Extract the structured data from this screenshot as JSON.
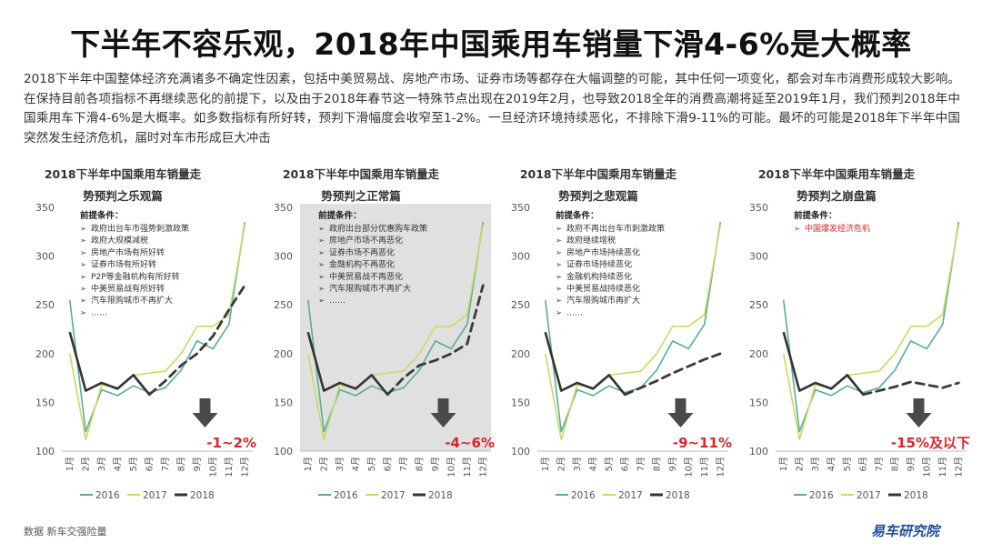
{
  "title": "下半年不容乐观，2018年中国乘用车销量下滑4-6%是大概率",
  "intro": "2018下半年中国整体经济充满诸多不确定性因素，包括中美贸易战、房地产市场、证券市场等都存在大幅调整的可能，其中任何一项变化，都会对车市消费形成较大影响。在保持目前各项指标不再继续恶化的前提下，以及由于2018年春节这一特殊节点出现在2019年2月，也导致2018全年的消费高潮将延至2019年1月，我们预判2018年中国乘用车下滑4-6%是大概率。如多数指标有所好转，预判下滑幅度会收窄至1-2%。一旦经济环境持续恶化，不排除下滑9-11%的可能。最坏的可能是2018年下半年中国突然发生经济危机，届时对车市形成巨大冲击",
  "colors": {
    "s2016": "#5aaa9c",
    "s2017": "#c5dd5f",
    "s2018": "#333333",
    "accent": "#d6262c",
    "arrow": "#4a4a4a",
    "shade": "#e0e0e0"
  },
  "chart_data": [
    {
      "type": "line",
      "title_line1": "2018下半年中国乘用车销量走",
      "title_line2": "势预判之乐观篇",
      "categories": [
        "1月",
        "2月",
        "3月",
        "4月",
        "5月",
        "6月",
        "7月",
        "8月",
        "9月",
        "10月",
        "11月",
        "12月"
      ],
      "ylim": [
        100,
        350
      ],
      "yticks": [
        100,
        150,
        200,
        250,
        300,
        350
      ],
      "series": [
        {
          "name": "2016",
          "values": [
            255,
            120,
            163,
            157,
            167,
            160,
            165,
            183,
            213,
            205,
            230,
            335
          ]
        },
        {
          "name": "2017",
          "values": [
            200,
            112,
            168,
            165,
            178,
            180,
            182,
            200,
            228,
            228,
            240,
            332
          ]
        },
        {
          "name": "2018",
          "values": [
            222,
            162,
            170,
            164,
            178,
            158,
            null,
            null,
            null,
            null,
            null,
            null
          ]
        }
      ],
      "forecast": {
        "values": [
          null,
          null,
          null,
          null,
          null,
          158,
          172,
          188,
          200,
          218,
          245,
          270
        ]
      },
      "premise_label": "前提条件：",
      "premise_items": [
        "政府出台车市强势刺激政策",
        "政府大规模减税",
        "房地产市场有所好转",
        "证券市场有所好转",
        "P2P等金融机构有所好转",
        "中美贸易战有所好转",
        "汽车限购城市不再扩大",
        "……"
      ],
      "premise_red": false,
      "shaded": false,
      "result": "-1~2%"
    },
    {
      "type": "line",
      "title_line1": "2018下半年中国乘用车销量走",
      "title_line2": "势预判之正常篇",
      "categories": [
        "1月",
        "2月",
        "3月",
        "4月",
        "5月",
        "6月",
        "7月",
        "8月",
        "9月",
        "10月",
        "11月",
        "12月"
      ],
      "ylim": [
        100,
        350
      ],
      "yticks": [
        100,
        150,
        200,
        250,
        300,
        350
      ],
      "series": [
        {
          "name": "2016",
          "values": [
            255,
            120,
            163,
            157,
            167,
            160,
            165,
            183,
            213,
            205,
            230,
            335
          ]
        },
        {
          "name": "2017",
          "values": [
            200,
            112,
            168,
            165,
            178,
            180,
            182,
            200,
            228,
            228,
            240,
            332
          ]
        },
        {
          "name": "2018",
          "values": [
            222,
            162,
            170,
            164,
            178,
            158,
            null,
            null,
            null,
            null,
            null,
            null
          ]
        }
      ],
      "forecast": {
        "values": [
          null,
          null,
          null,
          null,
          null,
          158,
          175,
          188,
          193,
          200,
          210,
          270
        ]
      },
      "premise_label": "前提条件：",
      "premise_items": [
        "政府出台部分优惠购车政策",
        "房地产市场不再恶化",
        "证券市场不再恶化",
        "金融机构不再恶化",
        "中美贸易战不再恶化",
        "汽车限购城市不再扩大",
        "……"
      ],
      "premise_red": false,
      "shaded": true,
      "result": "-4~6%"
    },
    {
      "type": "line",
      "title_line1": "2018下半年中国乘用车销量走",
      "title_line2": "势预判之悲观篇",
      "categories": [
        "1月",
        "2月",
        "3月",
        "4月",
        "5月",
        "6月",
        "7月",
        "8月",
        "9月",
        "10月",
        "11月",
        "12月"
      ],
      "ylim": [
        100,
        350
      ],
      "yticks": [
        100,
        150,
        200,
        250,
        300,
        350
      ],
      "series": [
        {
          "name": "2016",
          "values": [
            255,
            120,
            163,
            157,
            167,
            160,
            165,
            183,
            213,
            205,
            230,
            335
          ]
        },
        {
          "name": "2017",
          "values": [
            200,
            112,
            168,
            165,
            178,
            180,
            182,
            200,
            228,
            228,
            240,
            332
          ]
        },
        {
          "name": "2018",
          "values": [
            222,
            162,
            170,
            164,
            178,
            158,
            null,
            null,
            null,
            null,
            null,
            null
          ]
        }
      ],
      "forecast": {
        "values": [
          null,
          null,
          null,
          null,
          null,
          158,
          165,
          172,
          180,
          187,
          194,
          200
        ]
      },
      "premise_label": "前提条件：",
      "premise_items": [
        "政府不再出台车市刺激政策",
        "政府继续增税",
        "房地产市场持续恶化",
        "证券市场持续恶化",
        "金融机构持续恶化",
        "中美贸易战持续恶化",
        "汽车限购城市再扩大",
        "……"
      ],
      "premise_red": false,
      "shaded": false,
      "result": "-9~11%"
    },
    {
      "type": "line",
      "title_line1": "2018下半年中国乘用车销量走",
      "title_line2": "势预判之崩盘篇",
      "categories": [
        "1月",
        "2月",
        "3月",
        "4月",
        "5月",
        "6月",
        "7月",
        "8月",
        "9月",
        "10月",
        "11月",
        "12月"
      ],
      "ylim": [
        100,
        350
      ],
      "yticks": [
        100,
        150,
        200,
        250,
        300,
        350
      ],
      "series": [
        {
          "name": "2016",
          "values": [
            255,
            120,
            163,
            157,
            167,
            160,
            165,
            183,
            213,
            205,
            230,
            335
          ]
        },
        {
          "name": "2017",
          "values": [
            200,
            112,
            168,
            165,
            178,
            180,
            182,
            200,
            228,
            228,
            240,
            332
          ]
        },
        {
          "name": "2018",
          "values": [
            222,
            162,
            170,
            164,
            178,
            158,
            null,
            null,
            null,
            null,
            null,
            null
          ]
        }
      ],
      "forecast": {
        "values": [
          null,
          null,
          null,
          null,
          null,
          158,
          162,
          166,
          171,
          168,
          165,
          170
        ]
      },
      "premise_label": "前提条件：",
      "premise_items": [
        "中国爆发经济危机"
      ],
      "premise_red": true,
      "shaded": false,
      "result": "-15%及以下"
    }
  ],
  "footer": {
    "source": "数据  新车交强险量",
    "brand": "易车研究院"
  }
}
